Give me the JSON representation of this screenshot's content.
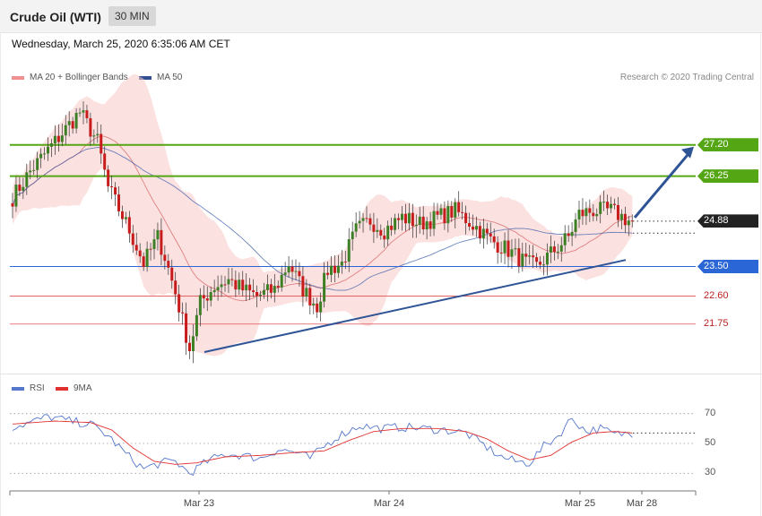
{
  "header": {
    "title": "Crude Oil (WTI)",
    "timeframe": "30 MIN",
    "timestamp": "Wednesday, March 25, 2020 6:35:06 AM CET"
  },
  "legend": {
    "ma20": "MA 20 + Bollinger Bands",
    "ma50": "MA 50",
    "rsi": "RSI",
    "ma9": "9MA",
    "copyright": "Research © 2020 Trading Central"
  },
  "colors": {
    "bull": "#3d7f24",
    "bear": "#c81b1b",
    "bands": "#f9c9c9",
    "ma20": "#e08080",
    "ma50": "#3a5ea8",
    "resistance": "#55a614",
    "support": "#2a66d6",
    "lower_support": "#e05050",
    "trendline": "#2f5496",
    "rsi": "#5577cc",
    "rsi_ma": "#e03030"
  },
  "chart_data": [
    {
      "type": "candlestick",
      "title": "Crude Oil (WTI)",
      "interval": "30 MIN",
      "x_labels": [
        "Mar 23",
        "Mar 24",
        "Mar 25",
        "Mar 28"
      ],
      "ylim": [
        20.3,
        29.1
      ],
      "current_price": "24.88",
      "levels": [
        {
          "label": "27.20",
          "value": 27.2,
          "kind": "resistance"
        },
        {
          "label": "26.25",
          "value": 26.25,
          "kind": "resistance"
        },
        {
          "label": "24.88",
          "value": 24.88,
          "kind": "current"
        },
        {
          "label": "23.50",
          "value": 23.5,
          "kind": "support"
        },
        {
          "label": "22.60",
          "value": 22.6,
          "kind": "lower_support"
        },
        {
          "label": "21.75",
          "value": 21.75,
          "kind": "lower_support"
        }
      ],
      "trendline": [
        {
          "idx": 0,
          "value": 20.9
        },
        {
          "idx": 79,
          "value": 23.7
        }
      ],
      "projection": {
        "from_value": 24.88,
        "to_value": 27.2
      },
      "close_path": [
        [
          0,
          25.6
        ],
        [
          5,
          26.4
        ],
        [
          12,
          27.3
        ],
        [
          19,
          28.2
        ],
        [
          24,
          27.3
        ],
        [
          27,
          25.9
        ],
        [
          33,
          24.6
        ],
        [
          37,
          23.6
        ],
        [
          41,
          24.4
        ],
        [
          43,
          23.8
        ],
        [
          46,
          22.7
        ],
        [
          50,
          21.0
        ],
        [
          53,
          22.4
        ],
        [
          57,
          22.9
        ],
        [
          61,
          23.1
        ],
        [
          65,
          22.8
        ],
        [
          69,
          22.6
        ],
        [
          74,
          22.8
        ],
        [
          78,
          23.6
        ],
        [
          82,
          22.8
        ],
        [
          86,
          22.3
        ],
        [
          89,
          23.4
        ],
        [
          93,
          23.6
        ],
        [
          97,
          24.6
        ],
        [
          101,
          24.9
        ],
        [
          105,
          24.6
        ],
        [
          110,
          25.0
        ],
        [
          115,
          24.8
        ],
        [
          120,
          25.0
        ],
        [
          125,
          25.2
        ],
        [
          131,
          24.7
        ],
        [
          135,
          24.3
        ],
        [
          140,
          24.0
        ],
        [
          145,
          23.6
        ],
        [
          148,
          23.5
        ],
        [
          152,
          23.9
        ],
        [
          157,
          24.4
        ],
        [
          160,
          25.1
        ],
        [
          164,
          25.2
        ],
        [
          169,
          25.2
        ],
        [
          174,
          24.9
        ],
        [
          175,
          24.88
        ]
      ],
      "series": [
        {
          "name": "MA 20 + Bollinger Bands"
        },
        {
          "name": "MA 50"
        }
      ]
    },
    {
      "type": "line",
      "title": "RSI",
      "ylim": [
        20,
        80
      ],
      "y_ticks": [
        "70",
        "50",
        "30"
      ],
      "rsi_path": [
        [
          0,
          61
        ],
        [
          5,
          64
        ],
        [
          10,
          68
        ],
        [
          16,
          65
        ],
        [
          22,
          63
        ],
        [
          27,
          55
        ],
        [
          32,
          43
        ],
        [
          37,
          33
        ],
        [
          42,
          37
        ],
        [
          46,
          38
        ],
        [
          50,
          30
        ],
        [
          55,
          38
        ],
        [
          60,
          43
        ],
        [
          65,
          42
        ],
        [
          70,
          40
        ],
        [
          75,
          46
        ],
        [
          80,
          44
        ],
        [
          84,
          40
        ],
        [
          88,
          48
        ],
        [
          92,
          55
        ],
        [
          98,
          62
        ],
        [
          104,
          60
        ],
        [
          110,
          61
        ],
        [
          116,
          60
        ],
        [
          122,
          59
        ],
        [
          128,
          57
        ],
        [
          133,
          49
        ],
        [
          138,
          41
        ],
        [
          142,
          38
        ],
        [
          146,
          37
        ],
        [
          150,
          48
        ],
        [
          154,
          55
        ],
        [
          158,
          67
        ],
        [
          162,
          58
        ],
        [
          166,
          60
        ],
        [
          170,
          56
        ],
        [
          175,
          57
        ]
      ],
      "ma_path": [
        [
          0,
          63
        ],
        [
          12,
          65
        ],
        [
          22,
          64
        ],
        [
          28,
          59
        ],
        [
          34,
          47
        ],
        [
          40,
          38
        ],
        [
          46,
          36
        ],
        [
          52,
          37
        ],
        [
          60,
          41
        ],
        [
          70,
          42
        ],
        [
          80,
          44
        ],
        [
          88,
          45
        ],
        [
          95,
          52
        ],
        [
          102,
          58
        ],
        [
          110,
          60
        ],
        [
          120,
          60
        ],
        [
          128,
          58
        ],
        [
          134,
          53
        ],
        [
          140,
          45
        ],
        [
          146,
          39
        ],
        [
          152,
          42
        ],
        [
          158,
          51
        ],
        [
          164,
          57
        ],
        [
          170,
          58
        ],
        [
          175,
          57
        ]
      ],
      "series": [
        {
          "name": "RSI"
        },
        {
          "name": "9MA"
        }
      ]
    }
  ]
}
